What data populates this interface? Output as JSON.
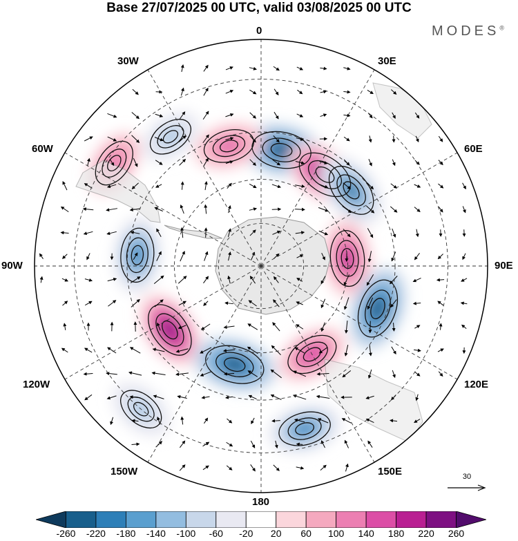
{
  "title": "Base 27/07/2025 00 UTC, valid 03/08/2025 00 UTC",
  "brand": "MODES",
  "brand_mark": "®",
  "map": {
    "projection": "south polar stereographic",
    "longitude_labels": {
      "top": "0",
      "top_left": "30W",
      "top_right": "30E",
      "upper_left": "60W",
      "upper_right": "60E",
      "left": "90W",
      "right": "90E",
      "lower_left": "120W",
      "lower_right": "120E",
      "bottom_left": "150W",
      "bottom_right": "150E",
      "bottom": "180"
    }
  },
  "wind_reference": {
    "value": "30"
  },
  "colorbar": {
    "levels": [
      "-260",
      "-220",
      "-180",
      "-140",
      "-100",
      "-60",
      "-20",
      "20",
      "60",
      "100",
      "140",
      "180",
      "220",
      "260"
    ],
    "colors": [
      "#0e3a5c",
      "#185f8c",
      "#2d7fb8",
      "#5a9fcf",
      "#93bde0",
      "#c8d7ea",
      "#e9e9f2",
      "#ffffff",
      "#fbd6dc",
      "#f5a9bf",
      "#ec7fb2",
      "#dc4ea6",
      "#b91f92",
      "#7e1082",
      "#520c6c"
    ]
  },
  "anomaly_blobs": [
    {
      "name": "cyclone-south-atlantic",
      "lon_deg": 10,
      "lat_deg": -50,
      "sign": "negative",
      "value": -260
    },
    {
      "name": "anticyclone-south-atlantic",
      "lon_deg": 35,
      "lat_deg": -52,
      "sign": "positive",
      "value": 240
    },
    {
      "name": "anticyclone-west-atlantic",
      "lon_deg": -15,
      "lat_deg": -48,
      "sign": "positive",
      "value": 160
    },
    {
      "name": "cyclone-falklands",
      "lon_deg": -35,
      "lat_deg": -38,
      "sign": "negative",
      "value": -100
    },
    {
      "name": "anticyclone-south-america",
      "lon_deg": -55,
      "lat_deg": -32,
      "sign": "positive",
      "value": 140
    },
    {
      "name": "cyclone-south-africa",
      "lon_deg": 50,
      "lat_deg": -50,
      "sign": "negative",
      "value": -220
    },
    {
      "name": "cyclone-southeast-pacific",
      "lon_deg": -85,
      "lat_deg": -48,
      "sign": "negative",
      "value": -200
    },
    {
      "name": "anticyclone-indian-ocean",
      "lon_deg": 85,
      "lat_deg": -60,
      "sign": "positive",
      "value": 220
    },
    {
      "name": "cyclone-south-indian",
      "lon_deg": 110,
      "lat_deg": -48,
      "sign": "negative",
      "value": -260
    },
    {
      "name": "anticyclone-pacific",
      "lon_deg": -125,
      "lat_deg": -52,
      "sign": "positive",
      "value": 230
    },
    {
      "name": "cyclone-ross-sea",
      "lon_deg": -165,
      "lat_deg": -55,
      "sign": "negative",
      "value": -260
    },
    {
      "name": "anticyclone-tasman",
      "lon_deg": 150,
      "lat_deg": -55,
      "sign": "positive",
      "value": 180
    },
    {
      "name": "cyclone-new-zealand",
      "lon_deg": 165,
      "lat_deg": -35,
      "sign": "negative",
      "value": -180
    },
    {
      "name": "cyclone-far-pacific",
      "lon_deg": -140,
      "lat_deg": -30,
      "sign": "negative",
      "value": -120
    }
  ]
}
